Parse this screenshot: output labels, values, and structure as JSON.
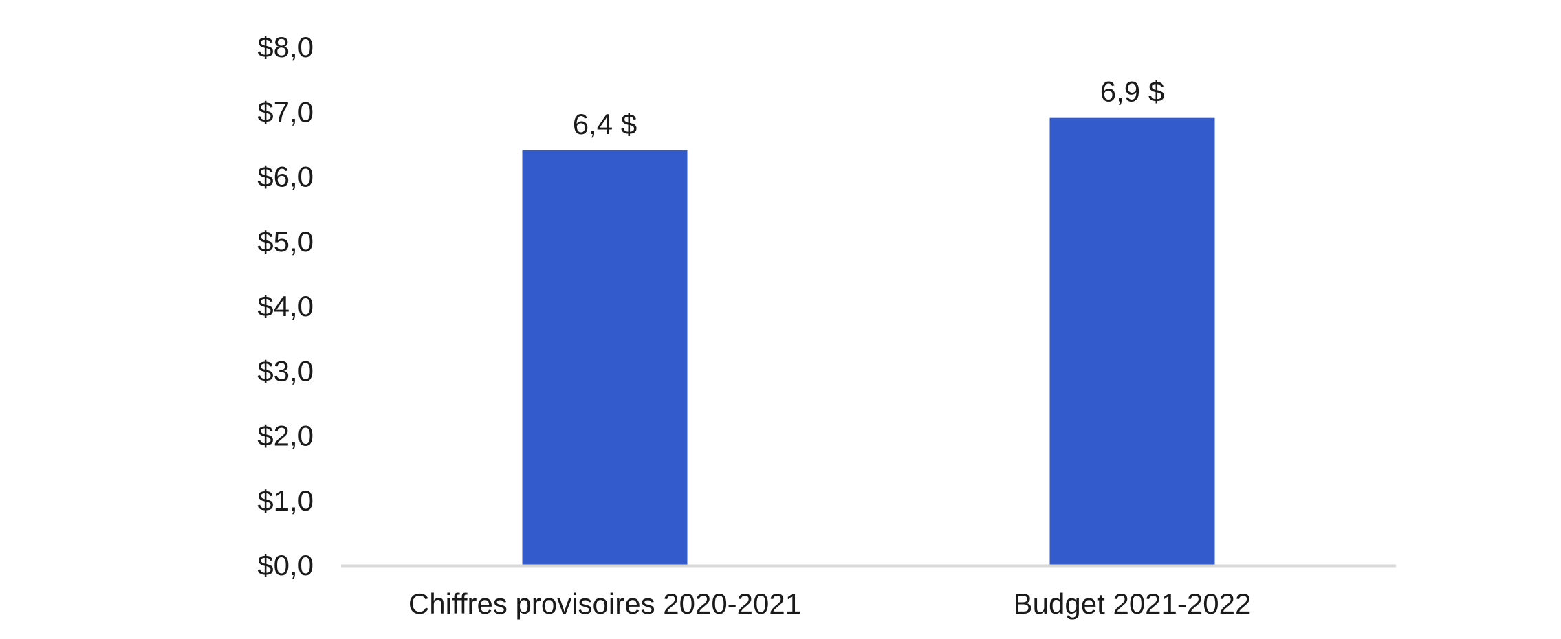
{
  "chart_data": {
    "type": "bar",
    "categories": [
      "Chiffres provisoires 2020-2021",
      "Budget 2021-2022"
    ],
    "values": [
      6.4,
      6.9
    ],
    "data_labels": [
      "6,4 $",
      "6,9 $"
    ],
    "y_ticks": [
      {
        "value": 0,
        "label": "$0,0"
      },
      {
        "value": 1,
        "label": "$1,0"
      },
      {
        "value": 2,
        "label": "$2,0"
      },
      {
        "value": 3,
        "label": "$3,0"
      },
      {
        "value": 4,
        "label": "$4,0"
      },
      {
        "value": 5,
        "label": "$5,0"
      },
      {
        "value": 6,
        "label": "$6,0"
      },
      {
        "value": 7,
        "label": "$7,0"
      },
      {
        "value": 8,
        "label": "$8,0"
      }
    ],
    "ylim": [
      0,
      8
    ],
    "grid": false,
    "legend": "none",
    "bar_color": "#335BCB",
    "axis_color": "#D9D9D9"
  }
}
